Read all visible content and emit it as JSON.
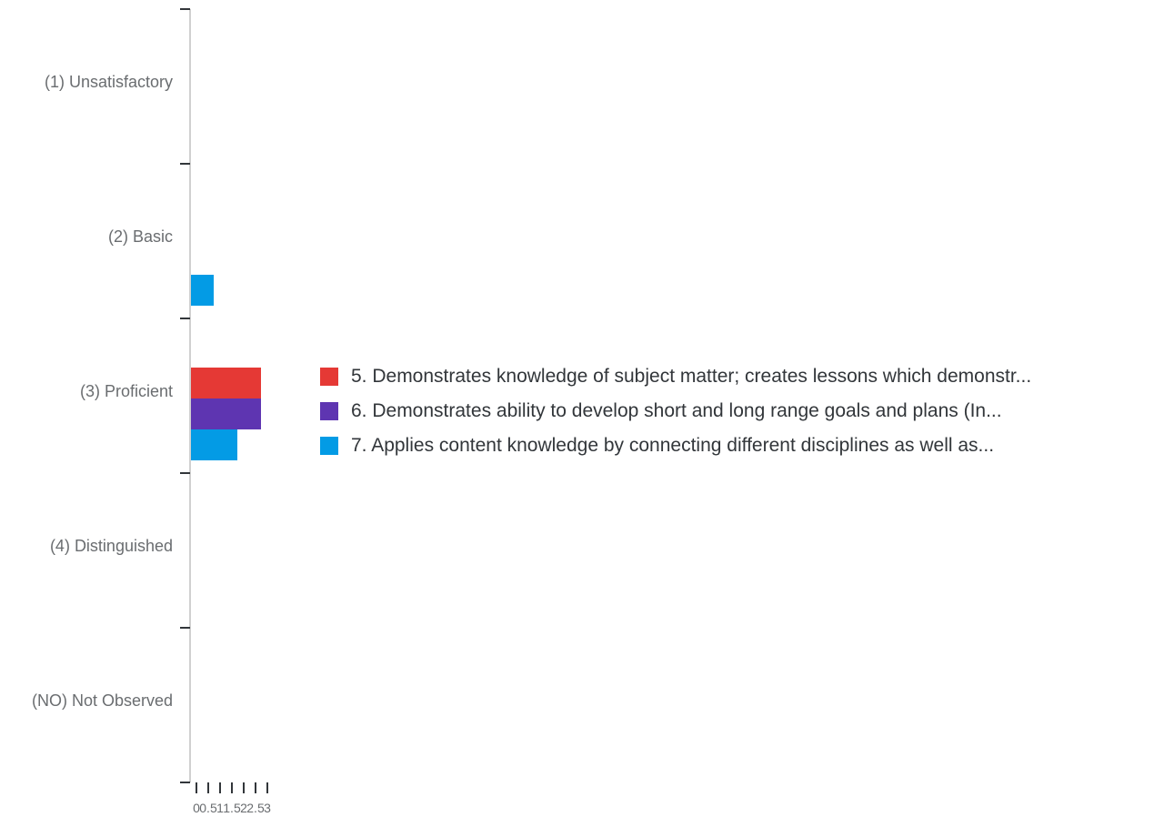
{
  "chart_data": {
    "type": "bar",
    "orientation": "horizontal",
    "categories": [
      "(1) Unsatisfactory",
      "(2) Basic",
      "(3) Proficient",
      "(4) Distinguished",
      "(NO) Not Observed"
    ],
    "series": [
      {
        "name": "5. Demonstrates knowledge of subject matter; creates lessons which demonstr...",
        "color": "#e53935",
        "values": [
          0,
          0,
          3,
          0,
          0
        ]
      },
      {
        "name": "6. Demonstrates ability to develop short and long range goals and plans (In...",
        "color": "#5e35b1",
        "values": [
          0,
          0,
          3,
          0,
          0
        ]
      },
      {
        "name": "7. Applies content knowledge by connecting different disciplines as well as...",
        "color": "#039be5",
        "values": [
          0,
          1,
          2,
          0,
          0
        ]
      }
    ],
    "x_ticks": [
      "0",
      "0.5",
      "1",
      "1.5",
      "2",
      "2.5",
      "3"
    ],
    "xlim": [
      0,
      3
    ],
    "legend_position": "right",
    "grid": false
  }
}
